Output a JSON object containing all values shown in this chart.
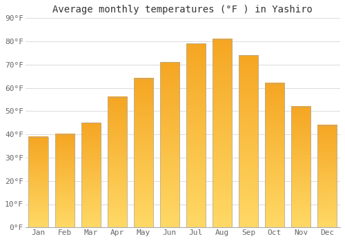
{
  "title": "Average monthly temperatures (°F ) in Yashiro",
  "months": [
    "Jan",
    "Feb",
    "Mar",
    "Apr",
    "May",
    "Jun",
    "Jul",
    "Aug",
    "Sep",
    "Oct",
    "Nov",
    "Dec"
  ],
  "values": [
    39,
    40,
    45,
    56,
    64,
    71,
    79,
    81,
    74,
    62,
    52,
    44
  ],
  "bar_color_top": "#F5A623",
  "bar_color_bottom": "#FFD966",
  "bar_edge_color": "#aaaaaa",
  "background_color": "#ffffff",
  "plot_bg_color": "#ffffff",
  "grid_color": "#dddddd",
  "ylim": [
    0,
    90
  ],
  "yticks": [
    0,
    10,
    20,
    30,
    40,
    50,
    60,
    70,
    80,
    90
  ],
  "ytick_labels": [
    "0°F",
    "10°F",
    "20°F",
    "30°F",
    "40°F",
    "50°F",
    "60°F",
    "70°F",
    "80°F",
    "90°F"
  ],
  "title_fontsize": 10,
  "tick_fontsize": 8,
  "tick_color": "#666666",
  "font_family": "monospace",
  "bar_width": 0.75
}
